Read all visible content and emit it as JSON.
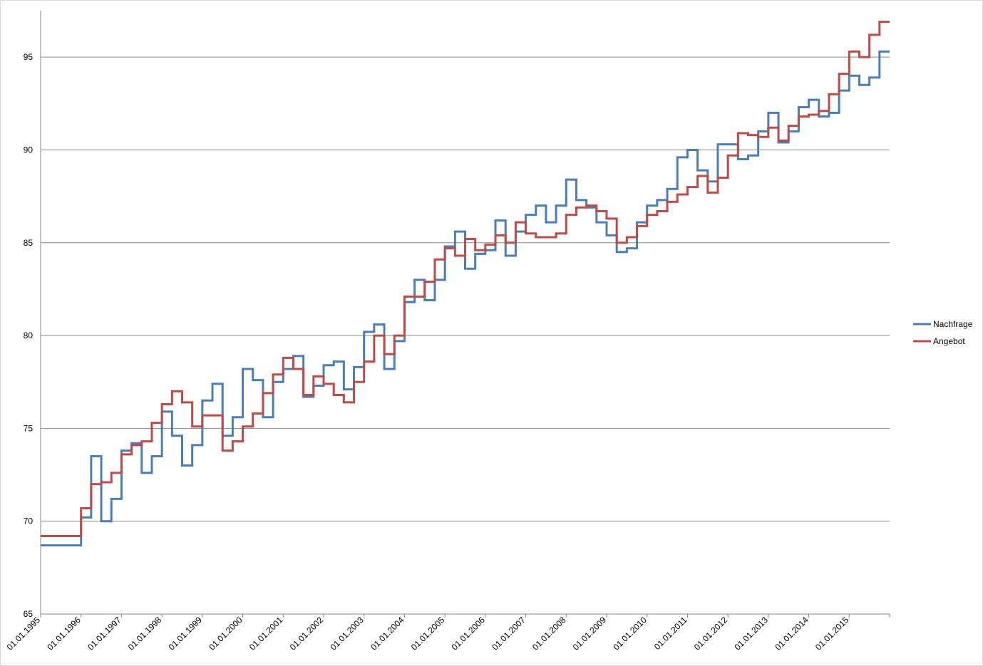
{
  "chart_data": {
    "type": "line",
    "title": "",
    "xlabel": "",
    "ylabel": "",
    "ylim": [
      65,
      97.5
    ],
    "yticks": [
      65,
      70,
      75,
      80,
      85,
      90,
      95
    ],
    "xlim": [
      "1995-01",
      "2016-01"
    ],
    "xticks": [
      "01.01.1995",
      "01.01.1996",
      "01.01.1997",
      "01.01.1998",
      "01.01.1999",
      "01.01.2000",
      "01.01.2001",
      "01.01.2002",
      "01.01.2003",
      "01.01.2004",
      "01.01.2005",
      "01.01.2006",
      "01.01.2007",
      "01.01.2008",
      "01.01.2009",
      "01.01.2010",
      "01.01.2011",
      "01.01.2012",
      "01.01.2013",
      "01.01.2014",
      "01.01.2015"
    ],
    "step": "quarterly",
    "grid": "horizontal",
    "legend_position": "right",
    "series": [
      {
        "name": "Nachfrage",
        "color": "#4a7ebb",
        "values": [
          68.7,
          68.7,
          68.7,
          68.7,
          70.2,
          73.5,
          70.0,
          71.2,
          73.8,
          74.2,
          72.6,
          73.5,
          75.9,
          74.6,
          73.0,
          74.1,
          76.5,
          77.4,
          74.6,
          75.6,
          78.2,
          77.6,
          75.6,
          77.5,
          78.2,
          78.9,
          76.7,
          77.3,
          78.4,
          78.6,
          77.1,
          78.3,
          80.2,
          80.6,
          78.2,
          79.7,
          81.8,
          83.0,
          81.9,
          83.0,
          84.8,
          85.6,
          83.6,
          84.4,
          84.6,
          86.2,
          84.3,
          85.6,
          86.5,
          87.0,
          86.1,
          87.0,
          88.4,
          87.3,
          86.9,
          86.1,
          85.4,
          84.5,
          84.7,
          86.1,
          87.0,
          87.3,
          87.9,
          89.6,
          90.0,
          88.9,
          88.3,
          90.3,
          90.3,
          89.5,
          89.7,
          91.0,
          92.0,
          90.4,
          91.0,
          92.3,
          92.7,
          91.8,
          92.0,
          93.2,
          94.0,
          93.5,
          93.9,
          95.3
        ]
      },
      {
        "name": "Angebot",
        "color": "#be4b48",
        "values": [
          69.2,
          69.2,
          69.2,
          69.2,
          70.7,
          72.0,
          72.1,
          72.6,
          73.6,
          74.1,
          74.3,
          75.3,
          76.3,
          77.0,
          76.4,
          75.1,
          75.7,
          75.7,
          73.8,
          74.3,
          75.1,
          75.8,
          76.9,
          77.9,
          78.8,
          78.2,
          76.8,
          77.8,
          77.4,
          76.8,
          76.4,
          77.5,
          78.6,
          80.0,
          79.0,
          80.0,
          82.1,
          82.1,
          82.9,
          84.1,
          84.7,
          84.3,
          85.2,
          84.6,
          84.9,
          85.4,
          85.0,
          86.1,
          85.5,
          85.3,
          85.3,
          85.5,
          86.5,
          86.9,
          87.0,
          86.7,
          86.3,
          85.0,
          85.3,
          85.9,
          86.5,
          86.7,
          87.2,
          87.6,
          88.0,
          88.6,
          87.7,
          88.5,
          89.7,
          90.9,
          90.8,
          90.7,
          91.2,
          90.5,
          91.3,
          91.8,
          91.9,
          92.1,
          93.0,
          94.1,
          95.3,
          95.0,
          96.2,
          96.9
        ]
      }
    ]
  }
}
